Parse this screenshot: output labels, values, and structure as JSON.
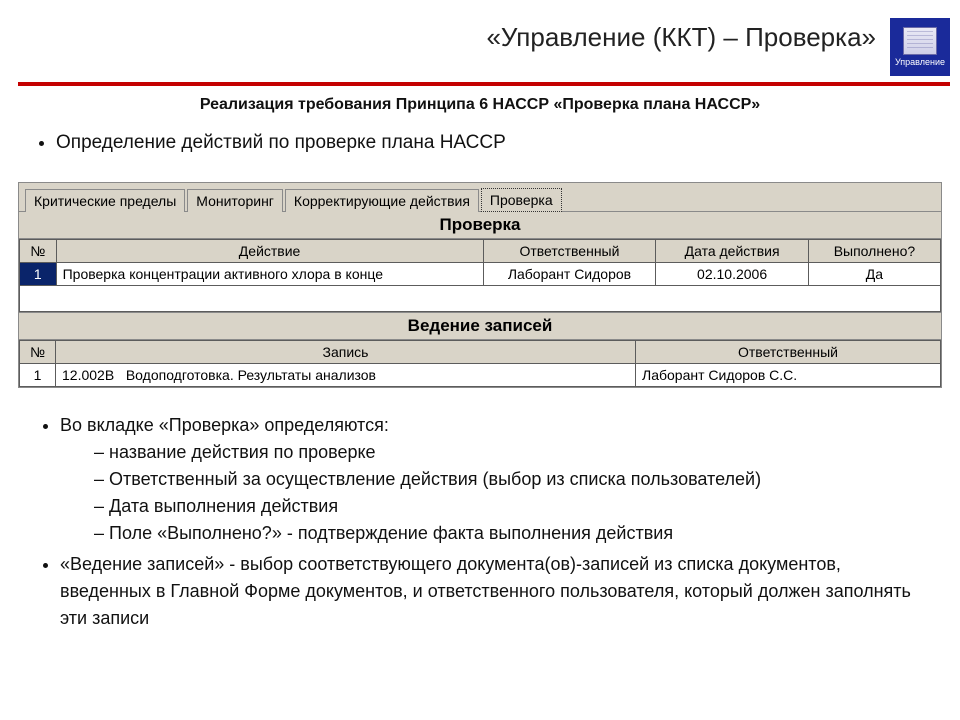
{
  "header": {
    "title": "«Управление (ККТ) – Проверка»",
    "logo_label": "Управление"
  },
  "subtitle": "Реализация требования Принципа 6 НАССР «Проверка плана НАССР»",
  "intro_bullet": "Определение действий по проверке плана НАССР",
  "tabs": {
    "items": [
      "Критические пределы",
      "Мониторинг",
      "Корректирующие действия",
      "Проверка"
    ],
    "active_index": 3
  },
  "section1": {
    "title": "Проверка",
    "columns": [
      "№",
      "Действие",
      "Ответственный",
      "Дата действия",
      "Выполнено?"
    ],
    "row": {
      "num": "1",
      "action": "Проверка концентрации активного хлора в конце",
      "responsible": "Лаборант Сидоров",
      "date": "02.10.2006",
      "done": "Да"
    }
  },
  "section2": {
    "title": "Ведение записей",
    "columns": [
      "№",
      "Запись",
      "Ответственный"
    ],
    "row": {
      "num": "1",
      "record_code": "12.002В",
      "record_name": "Водоподготовка. Результаты анализов",
      "responsible": "Лаборант Сидоров С.С."
    }
  },
  "notes": {
    "b1": "Во вкладке «Проверка» определяются:",
    "b1_items": [
      "название действия по проверке",
      "Ответственный за осуществление действия (выбор из списка пользователей)",
      "Дата выполнения действия",
      "Поле «Выполнено?» - подтверждение факта выполнения действия"
    ],
    "b2": "«Ведение записей» - выбор соответствующего документа(ов)-записей из списка документов, введенных в Главной Форме документов, и ответственного пользователя, который должен заполнять эти записи"
  },
  "colors": {
    "rule": "#c40000",
    "panel_bg": "#d9d4c8",
    "sel_bg": "#0a246a",
    "empty_row_bg": "#a2cfdc"
  }
}
